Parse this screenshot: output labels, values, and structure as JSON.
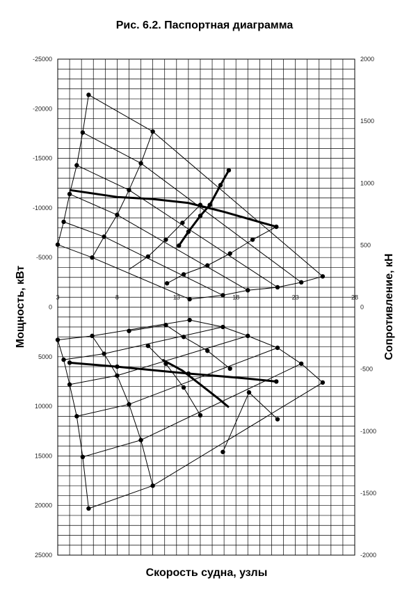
{
  "chart_data": {
    "type": "line",
    "title": "Рис. 6.2. Паспортная диаграмма",
    "xlabel": "Скорость судна, узлы",
    "ylabel_left": "Мощность, кВт",
    "ylabel_right": "Сопротивление, кН",
    "xlim": [
      3,
      28
    ],
    "xticks": [
      3,
      8,
      13,
      18,
      23,
      28
    ],
    "ylim_left": [
      25000,
      -25000
    ],
    "yticks_left": [
      -25000,
      -20000,
      -15000,
      -10000,
      -5000,
      0,
      5000,
      10000,
      15000,
      20000,
      25000
    ],
    "ylim_right": [
      2000,
      -2000
    ],
    "yticks_right": [
      2000,
      1500,
      1000,
      500,
      0,
      -500,
      -1000,
      -1500,
      -2000
    ],
    "grid": true,
    "upper_curves": [
      {
        "style": "thin",
        "points": [
          [
            5.6,
            -21400
          ],
          [
            11.0,
            -17700
          ],
          [
            25.3,
            -3100
          ]
        ]
      },
      {
        "style": "thin",
        "points": [
          [
            5.1,
            -17600
          ],
          [
            10.0,
            -14500
          ],
          [
            23.5,
            -2500
          ]
        ]
      },
      {
        "style": "thin",
        "points": [
          [
            4.6,
            -14300
          ],
          [
            9.0,
            -11800
          ],
          [
            21.5,
            -2000
          ]
        ]
      },
      {
        "style": "thin",
        "points": [
          [
            4.0,
            -11400
          ],
          [
            8.0,
            -9300
          ],
          [
            19.0,
            -1700
          ]
        ]
      },
      {
        "style": "thin",
        "points": [
          [
            3.5,
            -8600
          ],
          [
            6.9,
            -7100
          ],
          [
            16.9,
            -1200
          ]
        ]
      },
      {
        "style": "thin",
        "points": [
          [
            3.0,
            -6300
          ],
          [
            5.9,
            -5000
          ],
          [
            14.1,
            -800
          ]
        ]
      },
      {
        "style": "thin",
        "points": [
          [
            5.6,
            -21400
          ],
          [
            5.1,
            -17600
          ],
          [
            4.6,
            -14300
          ],
          [
            4.0,
            -11400
          ],
          [
            3.5,
            -8600
          ],
          [
            3.0,
            -6300
          ]
        ]
      },
      {
        "style": "thin",
        "points": [
          [
            11.0,
            -17700
          ],
          [
            10.0,
            -14500
          ],
          [
            9.0,
            -11800
          ],
          [
            8.0,
            -9300
          ],
          [
            6.9,
            -7100
          ],
          [
            5.9,
            -5000
          ]
        ]
      },
      {
        "style": "thin",
        "points": [
          [
            25.3,
            -3100
          ],
          [
            23.5,
            -2500
          ],
          [
            21.5,
            -2000
          ],
          [
            19.0,
            -1700
          ],
          [
            16.9,
            -1200
          ],
          [
            14.1,
            -800
          ]
        ]
      },
      {
        "style": "thin",
        "points": [
          [
            12.2,
            -2400
          ],
          [
            13.6,
            -3300
          ],
          [
            15.6,
            -4200
          ],
          [
            17.5,
            -5400
          ],
          [
            19.4,
            -6800
          ],
          [
            21.4,
            -8100
          ]
        ]
      },
      {
        "style": "thin",
        "points": [
          [
            9.0,
            -3800
          ],
          [
            10.6,
            -5100
          ],
          [
            12.1,
            -6800
          ],
          [
            13.5,
            -8500
          ],
          [
            15.0,
            -10300
          ]
        ]
      },
      {
        "style": "thin",
        "points": [
          [
            16.7,
            -12300
          ],
          [
            17.4,
            -13800
          ]
        ]
      },
      {
        "style": "thick",
        "points": [
          [
            4.0,
            -11800
          ],
          [
            8.0,
            -11100
          ],
          [
            11.0,
            -10900
          ],
          [
            14.0,
            -10500
          ],
          [
            15.0,
            -10200
          ],
          [
            17.0,
            -9600
          ],
          [
            21.4,
            -8100
          ]
        ]
      },
      {
        "style": "thick",
        "points": [
          [
            13.2,
            -6200
          ],
          [
            14.0,
            -7600
          ],
          [
            15.0,
            -9200
          ],
          [
            15.8,
            -10300
          ],
          [
            16.7,
            -12300
          ],
          [
            17.4,
            -13800
          ]
        ]
      }
    ],
    "lower_curves": [
      {
        "style": "thin",
        "points": [
          [
            5.6,
            20300
          ],
          [
            11.0,
            18000
          ],
          [
            25.3,
            7600
          ]
        ]
      },
      {
        "style": "thin",
        "points": [
          [
            5.1,
            15100
          ],
          [
            10.0,
            13400
          ],
          [
            23.5,
            5700
          ]
        ]
      },
      {
        "style": "thin",
        "points": [
          [
            4.6,
            11000
          ],
          [
            9.0,
            9800
          ],
          [
            21.5,
            4100
          ]
        ]
      },
      {
        "style": "thin",
        "points": [
          [
            4.0,
            7800
          ],
          [
            8.0,
            6900
          ],
          [
            19.0,
            2900
          ]
        ]
      },
      {
        "style": "thin",
        "points": [
          [
            3.5,
            5300
          ],
          [
            6.9,
            4700
          ],
          [
            16.9,
            2000
          ]
        ]
      },
      {
        "style": "thin",
        "points": [
          [
            3.0,
            3300
          ],
          [
            5.9,
            2900
          ],
          [
            14.1,
            1300
          ]
        ]
      },
      {
        "style": "thin",
        "points": [
          [
            5.6,
            20300
          ],
          [
            5.1,
            15100
          ],
          [
            4.6,
            11000
          ],
          [
            4.0,
            7800
          ],
          [
            3.5,
            5300
          ],
          [
            3.0,
            3300
          ]
        ]
      },
      {
        "style": "thin",
        "points": [
          [
            11.0,
            18000
          ],
          [
            10.0,
            13400
          ],
          [
            9.0,
            9800
          ],
          [
            8.0,
            6900
          ],
          [
            6.9,
            4700
          ],
          [
            5.9,
            2900
          ]
        ]
      },
      {
        "style": "thin",
        "points": [
          [
            25.3,
            7600
          ],
          [
            23.5,
            5700
          ],
          [
            21.5,
            4100
          ],
          [
            19.0,
            2900
          ],
          [
            16.9,
            2000
          ],
          [
            14.1,
            1300
          ]
        ]
      },
      {
        "style": "thin",
        "points": [
          [
            16.9,
            14600
          ],
          [
            19.1,
            8600
          ],
          [
            21.5,
            11300
          ]
        ]
      },
      {
        "style": "thin",
        "points": [
          [
            9.0,
            2400
          ],
          [
            12.1,
            1800
          ],
          [
            13.6,
            3000
          ],
          [
            15.6,
            4400
          ],
          [
            17.5,
            6200
          ]
        ]
      },
      {
        "style": "thin",
        "points": [
          [
            10.6,
            3900
          ],
          [
            12.1,
            5700
          ],
          [
            13.6,
            8100
          ],
          [
            15.0,
            10900
          ]
        ]
      },
      {
        "style": "thick",
        "points": [
          [
            4.0,
            5600
          ],
          [
            8.0,
            6000
          ],
          [
            14.0,
            6700
          ],
          [
            17.0,
            7000
          ],
          [
            19.0,
            7200
          ],
          [
            21.4,
            7500
          ]
        ]
      },
      {
        "style": "thick",
        "points": [
          [
            11.8,
            5300
          ],
          [
            13.5,
            6400
          ],
          [
            15.0,
            7800
          ],
          [
            16.5,
            9200
          ],
          [
            17.4,
            10100
          ]
        ]
      }
    ],
    "upper_markers": [
      [
        5.6,
        -21400
      ],
      [
        11.0,
        -17700
      ],
      [
        25.3,
        -3100
      ],
      [
        5.1,
        -17600
      ],
      [
        10.0,
        -14500
      ],
      [
        23.5,
        -2500
      ],
      [
        4.6,
        -14300
      ],
      [
        9.0,
        -11800
      ],
      [
        21.5,
        -2000
      ],
      [
        4.0,
        -11400
      ],
      [
        8.0,
        -9300
      ],
      [
        19.0,
        -1700
      ],
      [
        3.5,
        -8600
      ],
      [
        6.9,
        -7100
      ],
      [
        16.9,
        -1200
      ],
      [
        3.0,
        -6300
      ],
      [
        5.9,
        -5000
      ],
      [
        14.1,
        -800
      ],
      [
        12.2,
        -2400
      ],
      [
        13.6,
        -3300
      ],
      [
        15.6,
        -4200
      ],
      [
        17.5,
        -5400
      ],
      [
        19.4,
        -6800
      ],
      [
        21.4,
        -8100
      ],
      [
        10.6,
        -5100
      ],
      [
        12.1,
        -6800
      ],
      [
        13.5,
        -8500
      ],
      [
        15.0,
        -10300
      ],
      [
        16.7,
        -12300
      ],
      [
        17.4,
        -13800
      ],
      [
        13.2,
        -6200
      ],
      [
        14.0,
        -7600
      ],
      [
        15.0,
        -9200
      ],
      [
        15.8,
        -10300
      ]
    ],
    "lower_markers": [
      [
        5.6,
        20300
      ],
      [
        11.0,
        18000
      ],
      [
        25.3,
        7600
      ],
      [
        5.1,
        15100
      ],
      [
        10.0,
        13400
      ],
      [
        23.5,
        5700
      ],
      [
        4.6,
        11000
      ],
      [
        9.0,
        9800
      ],
      [
        21.5,
        4100
      ],
      [
        4.0,
        7800
      ],
      [
        8.0,
        6900
      ],
      [
        19.0,
        2900
      ],
      [
        3.5,
        5300
      ],
      [
        6.9,
        4700
      ],
      [
        16.9,
        2000
      ],
      [
        3.0,
        3300
      ],
      [
        5.9,
        2900
      ],
      [
        14.1,
        1300
      ],
      [
        16.9,
        14600
      ],
      [
        19.1,
        8600
      ],
      [
        21.5,
        11300
      ],
      [
        9.0,
        2400
      ],
      [
        12.1,
        1800
      ],
      [
        13.6,
        3000
      ],
      [
        15.6,
        4400
      ],
      [
        17.5,
        6200
      ],
      [
        10.6,
        3900
      ],
      [
        12.1,
        5700
      ],
      [
        13.6,
        8100
      ],
      [
        15.0,
        10900
      ],
      [
        4.0,
        5600
      ],
      [
        8.0,
        6000
      ],
      [
        14.0,
        6700
      ],
      [
        21.4,
        7500
      ]
    ]
  }
}
